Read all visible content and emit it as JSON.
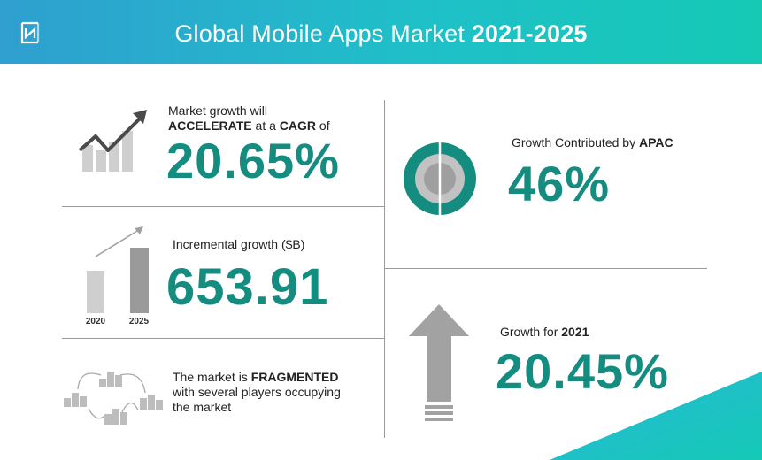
{
  "header": {
    "title_prefix": "Global Mobile Apps Market ",
    "title_years": "2021-2025"
  },
  "cagr": {
    "line1": "Market growth will",
    "accelerate": "ACCELERATE",
    "at_a": " at a ",
    "cagr": "CAGR",
    "of": " of",
    "value": "20.65%"
  },
  "incremental": {
    "label": "Incremental growth ($B)",
    "value": "653.91",
    "bar_labels": [
      "2020",
      "2025"
    ]
  },
  "fragmented": {
    "prefix": "The market is ",
    "bold": "FRAGMENTED",
    "line2": "with several players occupying",
    "line3": "the market"
  },
  "apac": {
    "label_prefix": "Growth Contributed by ",
    "label_bold": "APAC",
    "value": "46%"
  },
  "growth2021": {
    "label_prefix": "Growth for ",
    "label_bold": "2021",
    "value": "20.45%"
  },
  "colors": {
    "teal": "#148c7f",
    "header_gradient_start": "#2f9fd0",
    "header_gradient_end": "#15c9b5",
    "gray_dark": "#555555",
    "gray_mid": "#999999",
    "gray_light": "#cccccc"
  }
}
